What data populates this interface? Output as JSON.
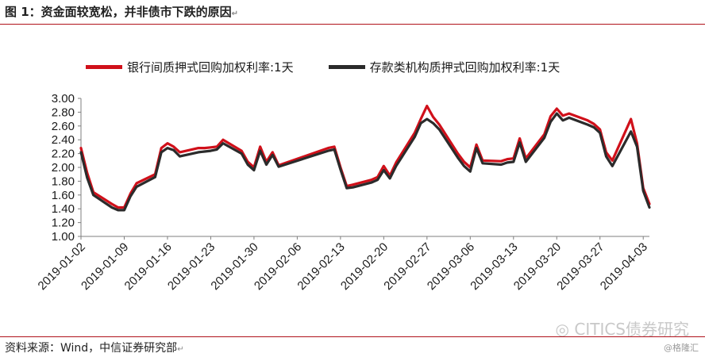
{
  "header": {
    "title": "图 1：资金面较宽松，并非债市下跌的原因",
    "return_mark": "↵"
  },
  "footer": {
    "source": "资料来源：Wind，中信证券研究部",
    "return_mark": "↵"
  },
  "watermark": {
    "text": "CITICS债券研究",
    "sub": "@格隆汇"
  },
  "colors": {
    "series1": "#d0101a",
    "series2": "#2b2b2b",
    "rule": "#b0121b"
  },
  "chart_data": {
    "type": "line",
    "ylim": [
      1.0,
      3.0
    ],
    "yticks": [
      "1.00",
      "1.20",
      "1.40",
      "1.60",
      "1.80",
      "2.00",
      "2.20",
      "2.40",
      "2.60",
      "2.80",
      "3.00"
    ],
    "ytick_values": [
      1.0,
      1.2,
      1.4,
      1.6,
      1.8,
      2.0,
      2.2,
      2.4,
      2.6,
      2.8,
      3.0
    ],
    "xticks": [
      {
        "label": "2019-01-02",
        "x": "2019-01-02"
      },
      {
        "label": "2019-01-09",
        "x": "2019-01-09"
      },
      {
        "label": "2019-01-16",
        "x": "2019-01-16"
      },
      {
        "label": "2019-01-23",
        "x": "2019-01-23"
      },
      {
        "label": "2019-01-30",
        "x": "2019-01-30"
      },
      {
        "label": "2019-02-06",
        "x": "2019-02-06"
      },
      {
        "label": "2019-02-13",
        "x": "2019-02-13"
      },
      {
        "label": "2019-02-20",
        "x": "2019-02-20"
      },
      {
        "label": "2019-02-27",
        "x": "2019-02-27"
      },
      {
        "label": "2019-03-06",
        "x": "2019-03-06"
      },
      {
        "label": "2019-03-13",
        "x": "2019-03-13"
      },
      {
        "label": "2019-03-20",
        "x": "2019-03-20"
      },
      {
        "label": "2019-03-27",
        "x": "2019-03-27"
      },
      {
        "label": "2019-04-03",
        "x": "2019-04-03"
      }
    ],
    "x": [
      "2019-01-02",
      "2019-01-03",
      "2019-01-04",
      "2019-01-07",
      "2019-01-08",
      "2019-01-09",
      "2019-01-10",
      "2019-01-11",
      "2019-01-14",
      "2019-01-15",
      "2019-01-16",
      "2019-01-17",
      "2019-01-18",
      "2019-01-21",
      "2019-01-22",
      "2019-01-23",
      "2019-01-24",
      "2019-01-25",
      "2019-01-28",
      "2019-01-29",
      "2019-01-30",
      "2019-01-31",
      "2019-02-01",
      "2019-02-02",
      "2019-02-03",
      "2019-02-11",
      "2019-02-12",
      "2019-02-13",
      "2019-02-14",
      "2019-02-15",
      "2019-02-18",
      "2019-02-19",
      "2019-02-20",
      "2019-02-21",
      "2019-02-22",
      "2019-02-25",
      "2019-02-26",
      "2019-02-27",
      "2019-02-28",
      "2019-03-01",
      "2019-03-04",
      "2019-03-05",
      "2019-03-06",
      "2019-03-07",
      "2019-03-08",
      "2019-03-11",
      "2019-03-12",
      "2019-03-13",
      "2019-03-14",
      "2019-03-15",
      "2019-03-18",
      "2019-03-19",
      "2019-03-20",
      "2019-03-21",
      "2019-03-22",
      "2019-03-25",
      "2019-03-26",
      "2019-03-27",
      "2019-03-28",
      "2019-03-29",
      "2019-04-01",
      "2019-04-02",
      "2019-04-03",
      "2019-04-04"
    ],
    "series": [
      {
        "name": "银行间质押式回购加权利率:1天",
        "values": [
          2.28,
          1.92,
          1.64,
          1.47,
          1.42,
          1.42,
          1.62,
          1.77,
          1.9,
          2.28,
          2.35,
          2.3,
          2.22,
          2.28,
          2.28,
          2.29,
          2.3,
          2.4,
          2.24,
          2.08,
          2.0,
          2.3,
          2.08,
          2.22,
          2.03,
          2.28,
          2.3,
          2.0,
          1.73,
          1.75,
          1.82,
          1.86,
          2.02,
          1.88,
          2.07,
          2.5,
          2.7,
          2.89,
          2.73,
          2.62,
          2.2,
          2.08,
          2.0,
          2.33,
          2.1,
          2.09,
          2.12,
          2.13,
          2.42,
          2.13,
          2.48,
          2.74,
          2.85,
          2.75,
          2.78,
          2.68,
          2.63,
          2.55,
          2.22,
          2.1,
          2.7,
          2.35,
          1.7,
          1.47
        ]
      },
      {
        "name": "存款类机构质押式回购加权利率:1天",
        "values": [
          2.22,
          1.85,
          1.6,
          1.42,
          1.38,
          1.38,
          1.58,
          1.72,
          1.86,
          2.22,
          2.28,
          2.25,
          2.16,
          2.22,
          2.23,
          2.24,
          2.26,
          2.35,
          2.2,
          2.04,
          1.96,
          2.24,
          2.04,
          2.18,
          2.01,
          2.24,
          2.26,
          1.97,
          1.7,
          1.71,
          1.78,
          1.82,
          1.96,
          1.84,
          2.02,
          2.44,
          2.64,
          2.7,
          2.64,
          2.55,
          2.14,
          2.02,
          1.94,
          2.28,
          2.06,
          2.04,
          2.07,
          2.08,
          2.36,
          2.08,
          2.43,
          2.66,
          2.78,
          2.68,
          2.72,
          2.62,
          2.58,
          2.5,
          2.16,
          2.02,
          2.52,
          2.3,
          1.66,
          1.42
        ]
      }
    ]
  }
}
